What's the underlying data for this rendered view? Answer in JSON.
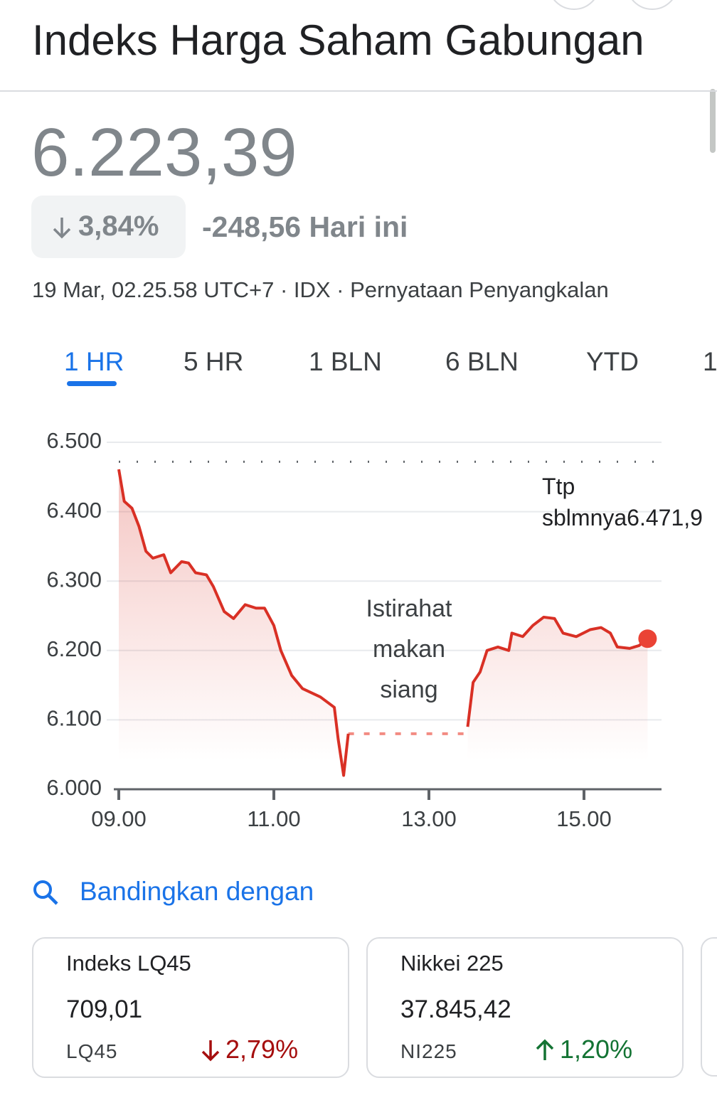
{
  "header": {
    "title": "Indeks Harga Saham Gabungan"
  },
  "quote": {
    "price": "6.223,39",
    "change_percent": "3,84%",
    "change": "-248,56 Hari ini",
    "meta": "19 Mar, 02.25.58 UTC+7 · IDX · Pernyataan Penyangkalan"
  },
  "tabs": {
    "items": [
      "1 HR",
      "5 HR",
      "1 BLN",
      "6 BLN",
      "YTD",
      "1"
    ],
    "active": 0
  },
  "chart_data": {
    "type": "line",
    "x": [
      9.0,
      9.07,
      9.17,
      9.26,
      9.35,
      9.44,
      9.58,
      9.67,
      9.81,
      9.9,
      9.99,
      10.13,
      10.22,
      10.36,
      10.48,
      10.63,
      10.77,
      10.88,
      11.0,
      11.09,
      11.23,
      11.37,
      11.6,
      11.78,
      11.83,
      11.9,
      11.96,
      null,
      13.5,
      13.57,
      13.66,
      13.75,
      13.89,
      14.03,
      14.07,
      14.21,
      14.34,
      14.48,
      14.62,
      14.73,
      14.9,
      15.08,
      15.22,
      15.34,
      15.43,
      15.59,
      15.71,
      15.82
    ],
    "series": [
      {
        "color": "#d93025",
        "values": [
          6461,
          6415,
          6405,
          6379,
          6343,
          6333,
          6338,
          6312,
          6328,
          6326,
          6312,
          6309,
          6292,
          6256,
          6246,
          6266,
          6261,
          6261,
          6236,
          6200,
          6164,
          6145,
          6133,
          6118,
          6072,
          6020,
          6080,
          null,
          6090,
          6154,
          6169,
          6200,
          6205,
          6200,
          6225,
          6220,
          6236,
          6248,
          6246,
          6225,
          6220,
          6230,
          6233,
          6225,
          6205,
          6203,
          6207,
          6217
        ]
      }
    ],
    "xlim": [
      9,
      16
    ],
    "ylim": [
      6000,
      6500
    ],
    "xticks": [
      {
        "value": 9,
        "label": "09.00"
      },
      {
        "value": 11,
        "label": "11.00"
      },
      {
        "value": 13,
        "label": "13.00"
      },
      {
        "value": 15,
        "label": "15.00"
      }
    ],
    "yticks": [
      {
        "value": 6000,
        "label": "6.000"
      },
      {
        "value": 6100,
        "label": "6.100"
      },
      {
        "value": 6200,
        "label": "6.200"
      },
      {
        "value": 6300,
        "label": "6.300"
      },
      {
        "value": 6400,
        "label": "6.400"
      },
      {
        "value": 6500,
        "label": "6.500"
      }
    ],
    "grid": true,
    "previous_close": {
      "value": 6471.9,
      "label": "Ttp sblmnya6.471,9"
    },
    "annotation": "Istirahat makan siang"
  },
  "compare": {
    "title": "Bandingkan dengan",
    "cards": [
      {
        "name": "Indeks LQ45",
        "value": "709,01",
        "ticker": "LQ45",
        "change": "2,79%",
        "direction": "down"
      },
      {
        "name": "Nikkei 225",
        "value": "37.845,42",
        "ticker": "NI225",
        "change": "1,20%",
        "direction": "up"
      }
    ]
  }
}
